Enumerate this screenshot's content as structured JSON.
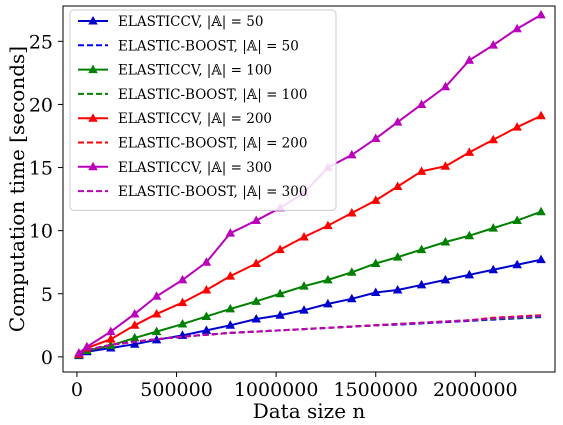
{
  "chart_data": {
    "type": "line",
    "title": "",
    "xlabel": "Data size n",
    "ylabel": "Computation time [seconds]",
    "xlim": [
      -70000,
      2400000
    ],
    "ylim": [
      -1.2,
      27.8
    ],
    "x_ticks": [
      0,
      500000,
      1000000,
      1500000,
      2000000
    ],
    "x_tick_labels": [
      "0",
      "500000",
      "1000000",
      "1500000",
      "2000000"
    ],
    "y_ticks": [
      0,
      5,
      10,
      15,
      20,
      25
    ],
    "y_tick_labels": [
      "0",
      "5",
      "10",
      "15",
      "20",
      "25"
    ],
    "grid": false,
    "legend_position": "top-left",
    "x": [
      10000,
      50000,
      170000,
      290000,
      400000,
      530000,
      650000,
      770000,
      900000,
      1020000,
      1140000,
      1260000,
      1380000,
      1500000,
      1610000,
      1730000,
      1850000,
      1970000,
      2090000,
      2210000,
      2330000
    ],
    "series": [
      {
        "name": "ELASTICCV, |𝔸| = 50",
        "color": "#0000cc",
        "style": "solid",
        "marker": "triangle",
        "values": [
          0.1,
          0.4,
          0.7,
          1.0,
          1.35,
          1.7,
          2.1,
          2.5,
          3.0,
          3.3,
          3.7,
          4.2,
          4.6,
          5.1,
          5.3,
          5.7,
          6.1,
          6.5,
          6.9,
          7.3,
          7.7
        ]
      },
      {
        "name": "ELASTIC-BOOST, |𝔸| = 50",
        "color": "#0000ff",
        "style": "dashed",
        "values": [
          0.2,
          0.55,
          0.95,
          1.2,
          1.4,
          1.6,
          1.75,
          1.9,
          2.0,
          2.1,
          2.2,
          2.3,
          2.4,
          2.5,
          2.55,
          2.65,
          2.75,
          2.85,
          2.95,
          3.05,
          3.15
        ]
      },
      {
        "name": "ELASTICCV, |𝔸| = 100",
        "color": "#008000",
        "style": "solid",
        "marker": "triangle",
        "values": [
          0.15,
          0.5,
          0.9,
          1.5,
          2.0,
          2.6,
          3.2,
          3.8,
          4.4,
          5.0,
          5.6,
          6.1,
          6.7,
          7.4,
          7.9,
          8.5,
          9.1,
          9.6,
          10.2,
          10.8,
          11.5
        ]
      },
      {
        "name": "ELASTIC-BOOST, |𝔸| = 100",
        "color": "#008000",
        "style": "dashed",
        "values": [
          0.2,
          0.55,
          0.95,
          1.2,
          1.4,
          1.6,
          1.75,
          1.9,
          2.0,
          2.1,
          2.2,
          2.3,
          2.4,
          2.5,
          2.6,
          2.7,
          2.8,
          2.9,
          3.0,
          3.1,
          3.2
        ]
      },
      {
        "name": "ELASTICCV, |𝔸| = 200",
        "color": "#ff0000",
        "style": "solid",
        "marker": "triangle",
        "values": [
          0.2,
          0.7,
          1.4,
          2.5,
          3.4,
          4.3,
          5.3,
          6.4,
          7.4,
          8.5,
          9.5,
          10.4,
          11.4,
          12.4,
          13.5,
          14.7,
          15.1,
          16.2,
          17.2,
          18.2,
          19.1
        ]
      },
      {
        "name": "ELASTIC-BOOST, |𝔸| = 200",
        "color": "#ff0000",
        "style": "dashed",
        "values": [
          0.2,
          0.55,
          0.95,
          1.2,
          1.4,
          1.6,
          1.75,
          1.9,
          2.0,
          2.1,
          2.2,
          2.3,
          2.4,
          2.5,
          2.6,
          2.7,
          2.8,
          2.9,
          3.1,
          3.2,
          3.3
        ]
      },
      {
        "name": "ELASTICCV, |𝔸| = 300",
        "color": "#bb00bb",
        "style": "solid",
        "marker": "triangle",
        "values": [
          0.3,
          0.8,
          2.0,
          3.4,
          4.8,
          6.1,
          7.5,
          9.8,
          10.8,
          11.8,
          13.0,
          15.0,
          16.0,
          17.3,
          18.6,
          20.0,
          21.4,
          23.5,
          24.7,
          26.0,
          27.1
        ]
      },
      {
        "name": "ELASTIC-BOOST, |𝔸| = 300",
        "color": "#bb00bb",
        "style": "dashed",
        "values": [
          0.2,
          0.55,
          0.95,
          1.2,
          1.4,
          1.6,
          1.75,
          1.9,
          2.0,
          2.1,
          2.2,
          2.3,
          2.4,
          2.5,
          2.6,
          2.7,
          2.8,
          2.9,
          3.05,
          3.15,
          3.25
        ]
      }
    ]
  }
}
